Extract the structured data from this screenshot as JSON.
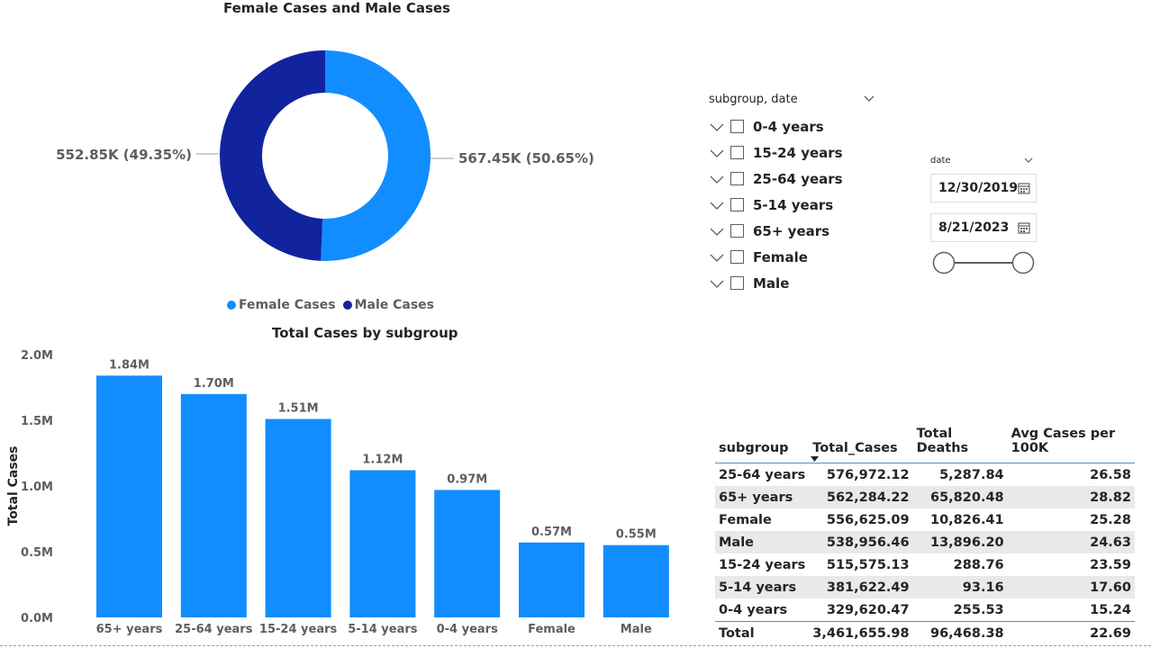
{
  "donut": {
    "title": "Female Cases and Male Cases",
    "left_label": "552.85K (49.35%)",
    "right_label": "567.45K (50.65%)",
    "legend": [
      {
        "label": "Female Cases",
        "color": "#118dff"
      },
      {
        "label": "Male Cases",
        "color": "#12239e"
      }
    ]
  },
  "bar": {
    "title": "Total Cases by subgroup",
    "ylabel": "Total Cases"
  },
  "slicer": {
    "header": "subgroup, date",
    "items": [
      "0-4 years",
      "15-24 years",
      "25-64 years",
      "5-14 years",
      "65+ years",
      "Female",
      "Male"
    ]
  },
  "date_slicer": {
    "header": "date",
    "start": "12/30/2019",
    "end": "8/21/2023",
    "range_fraction": [
      0,
      1
    ]
  },
  "table": {
    "columns": [
      "subgroup",
      "Total_Cases",
      "Total Deaths",
      "Avg Cases per 100K"
    ],
    "sorted_column": "Total_Cases",
    "rows": [
      [
        "25-64 years",
        "576,972.12",
        "5,287.84",
        "26.58"
      ],
      [
        "65+ years",
        "562,284.22",
        "65,820.48",
        "28.82"
      ],
      [
        "Female",
        "556,625.09",
        "10,826.41",
        "25.28"
      ],
      [
        "Male",
        "538,956.46",
        "13,896.20",
        "24.63"
      ],
      [
        "15-24 years",
        "515,575.13",
        "288.76",
        "23.59"
      ],
      [
        "5-14 years",
        "381,622.49",
        "93.16",
        "17.60"
      ],
      [
        "0-4 years",
        "329,620.47",
        "255.53",
        "15.24"
      ]
    ],
    "total": [
      "Total",
      "3,461,655.98",
      "96,468.38",
      "22.69"
    ]
  },
  "chart_data": [
    {
      "type": "pie",
      "title": "Female Cases and Male Cases",
      "categories": [
        "Female Cases",
        "Male Cases"
      ],
      "values": [
        567450,
        552850
      ],
      "percentages": [
        50.65,
        49.35
      ],
      "data_labels": [
        "567.45K (50.65%)",
        "552.85K (49.35%)"
      ],
      "colors": [
        "#118dff",
        "#12239e"
      ],
      "donut": true,
      "legend_position": "bottom"
    },
    {
      "type": "bar",
      "title": "Total Cases by subgroup",
      "ylabel": "Total Cases",
      "categories": [
        "65+ years",
        "25-64 years",
        "15-24 years",
        "5-14 years",
        "0-4 years",
        "Female",
        "Male"
      ],
      "values": [
        1.84,
        1.7,
        1.51,
        1.12,
        0.97,
        0.57,
        0.55
      ],
      "value_unit": "M",
      "data_labels": [
        "1.84M",
        "1.70M",
        "1.51M",
        "1.12M",
        "0.97M",
        "0.57M",
        "0.55M"
      ],
      "yticks": [
        "0.0M",
        "0.5M",
        "1.0M",
        "1.5M",
        "2.0M"
      ],
      "ylim": [
        0,
        2.0
      ],
      "color": "#118dff",
      "grid": false
    }
  ]
}
